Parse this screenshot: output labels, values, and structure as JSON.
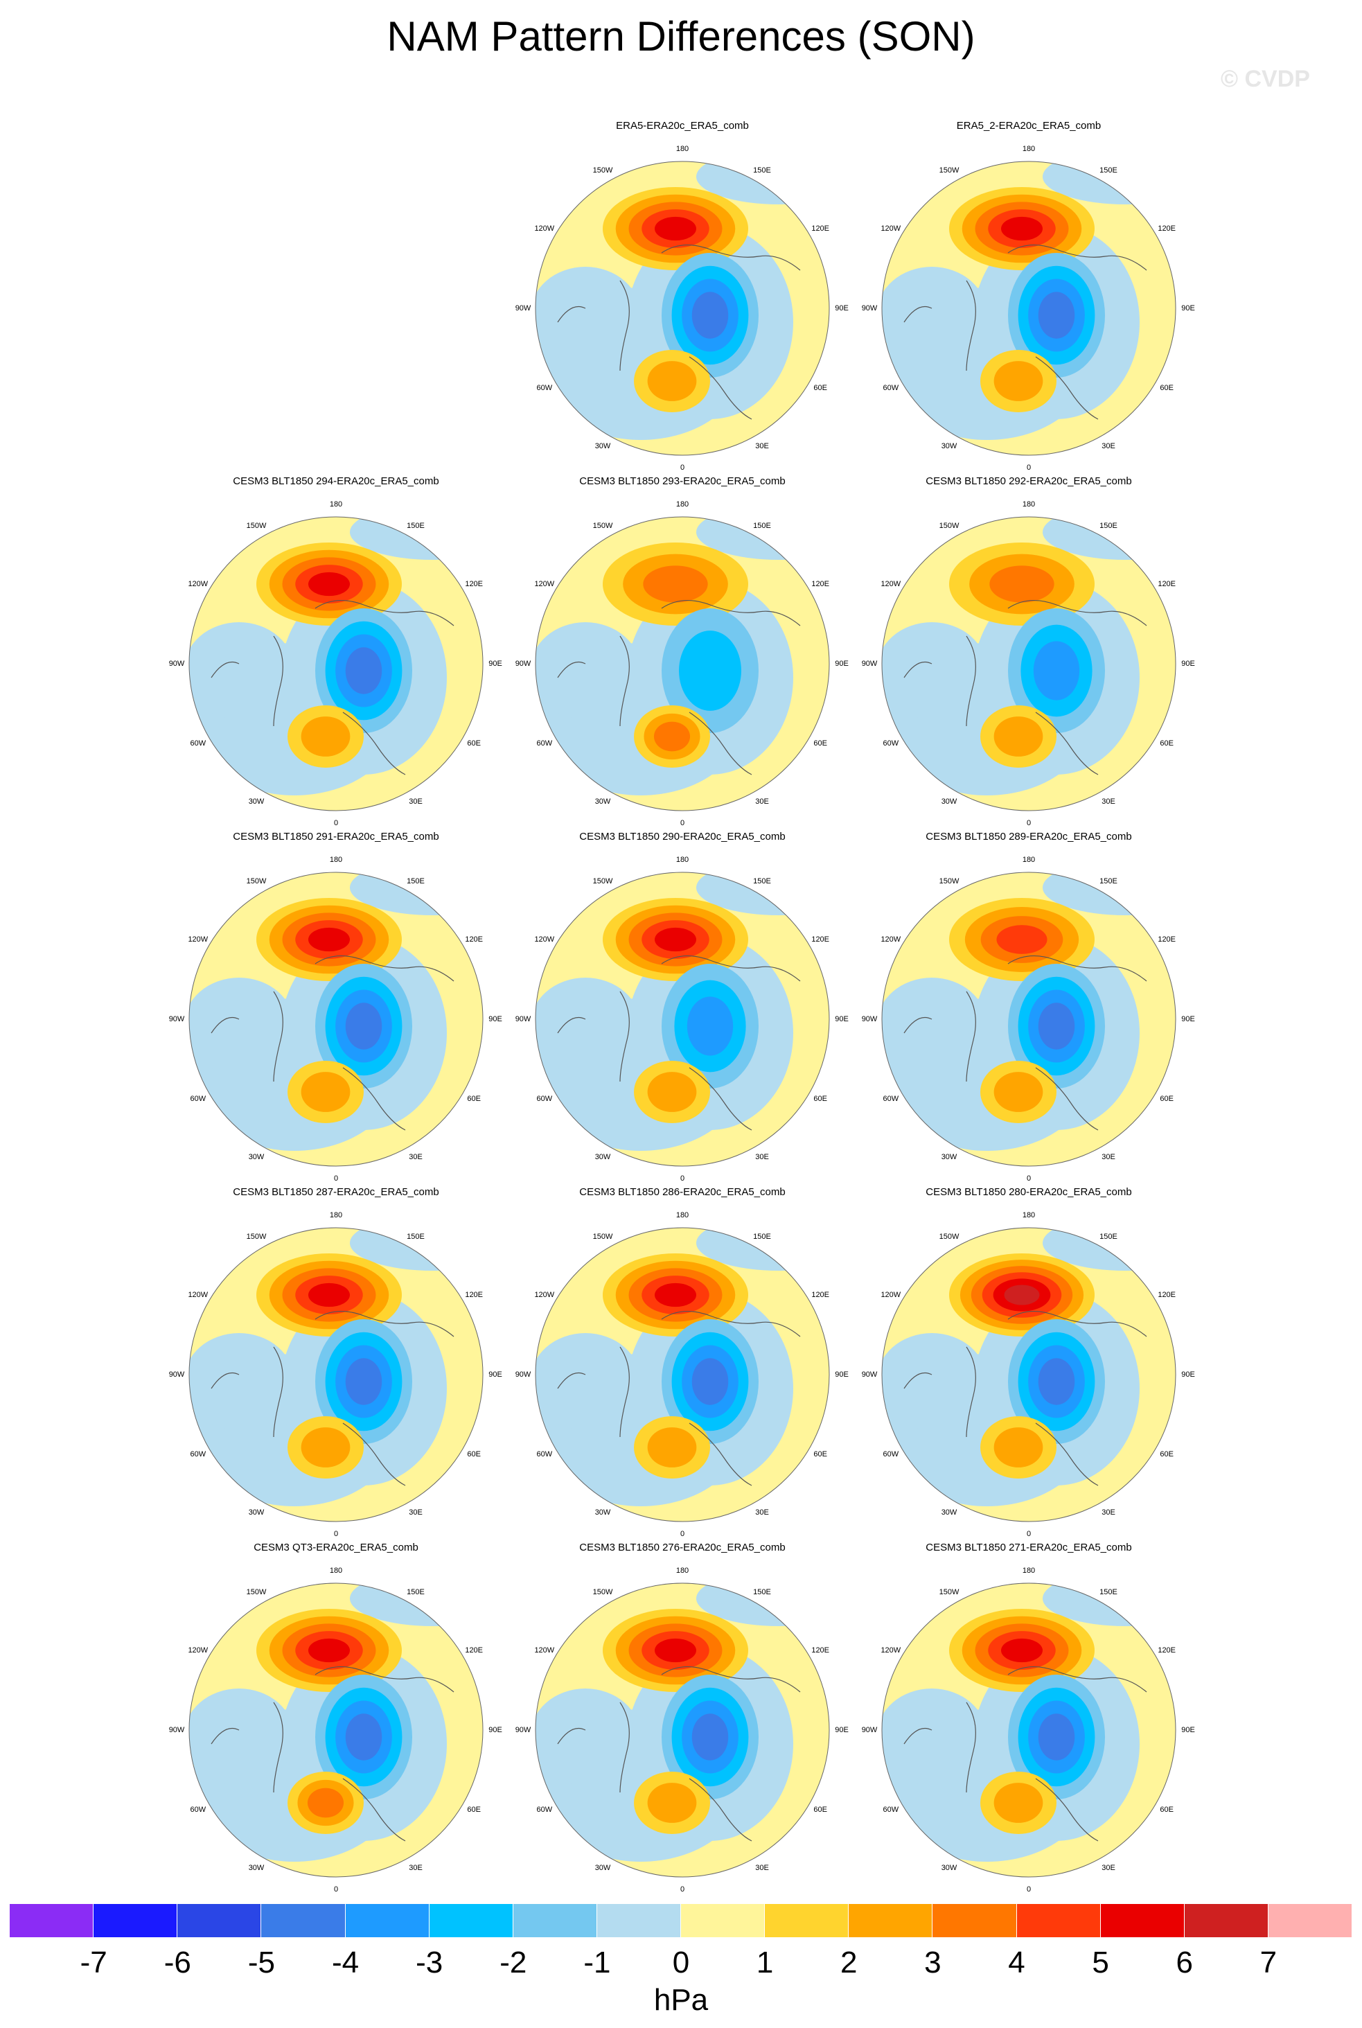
{
  "title": "NAM Pattern Differences (SON)",
  "watermark": "© CVDP",
  "lon_labels": [
    "180",
    "150E",
    "120E",
    "90E",
    "60E",
    "30E",
    "0",
    "30W",
    "60W",
    "90W",
    "120W",
    "150W"
  ],
  "panels": [
    {
      "title": "ERA5-ERA20c_ERA5_comb",
      "row": 0,
      "col": 1,
      "high_strength": 5,
      "low_strength": 4,
      "atl_strength": 2
    },
    {
      "title": "ERA5_2-ERA20c_ERA5_comb",
      "row": 0,
      "col": 2,
      "high_strength": 5,
      "low_strength": 4,
      "atl_strength": 2
    },
    {
      "title": "CESM3 BLT1850 294-ERA20c_ERA5_comb",
      "row": 1,
      "col": 0,
      "high_strength": 5,
      "low_strength": 4,
      "atl_strength": 2
    },
    {
      "title": "CESM3 BLT1850 293-ERA20c_ERA5_comb",
      "row": 1,
      "col": 1,
      "high_strength": 3,
      "low_strength": 2,
      "atl_strength": 3
    },
    {
      "title": "CESM3 BLT1850 292-ERA20c_ERA5_comb",
      "row": 1,
      "col": 2,
      "high_strength": 3,
      "low_strength": 3,
      "atl_strength": 2
    },
    {
      "title": "CESM3 BLT1850 291-ERA20c_ERA5_comb",
      "row": 2,
      "col": 0,
      "high_strength": 5,
      "low_strength": 4,
      "atl_strength": 2
    },
    {
      "title": "CESM3 BLT1850 290-ERA20c_ERA5_comb",
      "row": 2,
      "col": 1,
      "high_strength": 5,
      "low_strength": 3,
      "atl_strength": 2
    },
    {
      "title": "CESM3 BLT1850 289-ERA20c_ERA5_comb",
      "row": 2,
      "col": 2,
      "high_strength": 4,
      "low_strength": 4,
      "atl_strength": 2
    },
    {
      "title": "CESM3 BLT1850 287-ERA20c_ERA5_comb",
      "row": 3,
      "col": 0,
      "high_strength": 5,
      "low_strength": 4,
      "atl_strength": 2
    },
    {
      "title": "CESM3 BLT1850 286-ERA20c_ERA5_comb",
      "row": 3,
      "col": 1,
      "high_strength": 5,
      "low_strength": 4,
      "atl_strength": 2
    },
    {
      "title": "CESM3 BLT1850 280-ERA20c_ERA5_comb",
      "row": 3,
      "col": 2,
      "high_strength": 6,
      "low_strength": 4,
      "atl_strength": 2
    },
    {
      "title": "CESM3 QT3-ERA20c_ERA5_comb",
      "row": 4,
      "col": 0,
      "high_strength": 5,
      "low_strength": 4,
      "atl_strength": 3
    },
    {
      "title": "CESM3 BLT1850 276-ERA20c_ERA5_comb",
      "row": 4,
      "col": 1,
      "high_strength": 5,
      "low_strength": 4,
      "atl_strength": 2
    },
    {
      "title": "CESM3 BLT1850 271-ERA20c_ERA5_comb",
      "row": 4,
      "col": 2,
      "high_strength": 5,
      "low_strength": 4,
      "atl_strength": 2
    }
  ],
  "colorbar": {
    "colors": [
      "#8b2cf5",
      "#1a1aff",
      "#2a46e6",
      "#3a7ce8",
      "#1e9bff",
      "#00c2ff",
      "#74c8f0",
      "#b4dcf0",
      "#fff59a",
      "#ffd42e",
      "#ffa500",
      "#ff7700",
      "#ff3a0a",
      "#ea0000",
      "#cf2020",
      "#ffb0b0"
    ],
    "ticks": [
      "-7",
      "-6",
      "-5",
      "-4",
      "-3",
      "-2",
      "-1",
      "0",
      "1",
      "2",
      "3",
      "4",
      "5",
      "6",
      "7"
    ],
    "units": "hPa"
  }
}
